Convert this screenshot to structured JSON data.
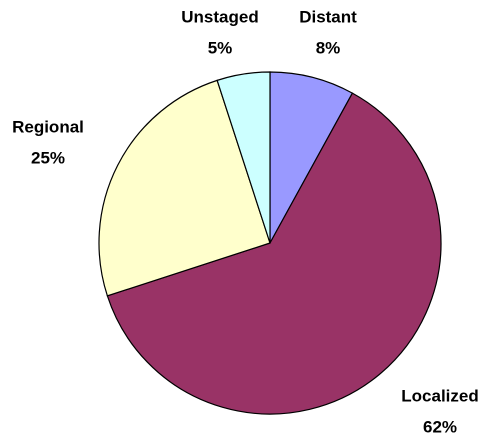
{
  "chart_data": {
    "type": "pie",
    "categories": [
      "Distant",
      "Localized",
      "Regional",
      "Unstaged"
    ],
    "values": [
      8,
      62,
      25,
      5
    ],
    "value_labels": [
      "8%",
      "62%",
      "25%",
      "5%"
    ],
    "colors": [
      "#9999ff",
      "#993366",
      "#ffffcc",
      "#ccffff"
    ]
  }
}
